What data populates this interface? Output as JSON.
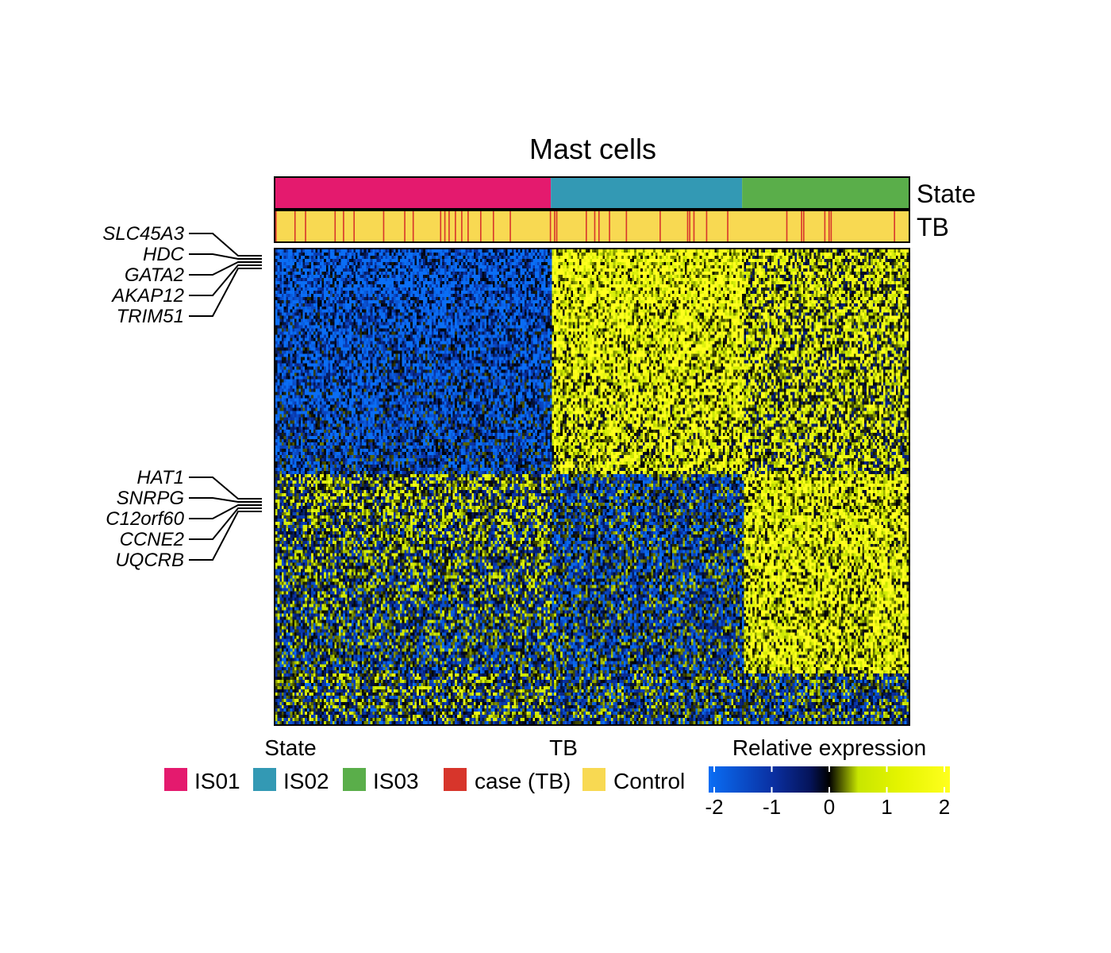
{
  "chart_data": {
    "type": "heatmap",
    "title": "Mast cells",
    "annotations": [
      {
        "name": "State",
        "segments": [
          {
            "label": "IS01",
            "fraction": 0.435
          },
          {
            "label": "IS02",
            "fraction": 0.302
          },
          {
            "label": "IS03",
            "fraction": 0.263
          }
        ]
      },
      {
        "name": "TB",
        "majority": "Control",
        "minority": "case (TB)",
        "case_fraction": 0.15
      }
    ],
    "row_labels": [
      {
        "group": 1,
        "genes": [
          "SLC45A3",
          "HDC",
          "GATA2",
          "AKAP12",
          "TRIM51"
        ]
      },
      {
        "group": 2,
        "genes": [
          "HAT1",
          "SNRPG",
          "C12orf60",
          "CCNE2",
          "UQCRB"
        ]
      }
    ],
    "n_rows": 150,
    "n_cols": 300,
    "row_clusters": [
      {
        "rows_fraction": 0.47,
        "pattern": "low in IS01, high in IS02 and IS03"
      },
      {
        "rows_fraction": 0.42,
        "pattern": "low in IS01, highest in IS03"
      },
      {
        "rows_fraction": 0.11,
        "pattern": "mixed"
      }
    ],
    "legends": {
      "state": {
        "title": "State",
        "items": [
          {
            "label": "IS01",
            "color": "#E41A6E"
          },
          {
            "label": "IS02",
            "color": "#3399B4"
          },
          {
            "label": "IS03",
            "color": "#5AAE4A"
          }
        ]
      },
      "tb": {
        "title": "TB",
        "items": [
          {
            "label": "case (TB)",
            "color": "#D7352B"
          },
          {
            "label": "Control",
            "color": "#F8D952"
          }
        ]
      },
      "expression": {
        "title": "Relative expression",
        "ticks": [
          "-2",
          "-1",
          "0",
          "1",
          "2"
        ],
        "range": [
          -2,
          2
        ],
        "colors": [
          "#0A6EF5",
          "#0A2FA0",
          "#000000",
          "#C8E600",
          "#FFFF1E"
        ]
      }
    }
  }
}
